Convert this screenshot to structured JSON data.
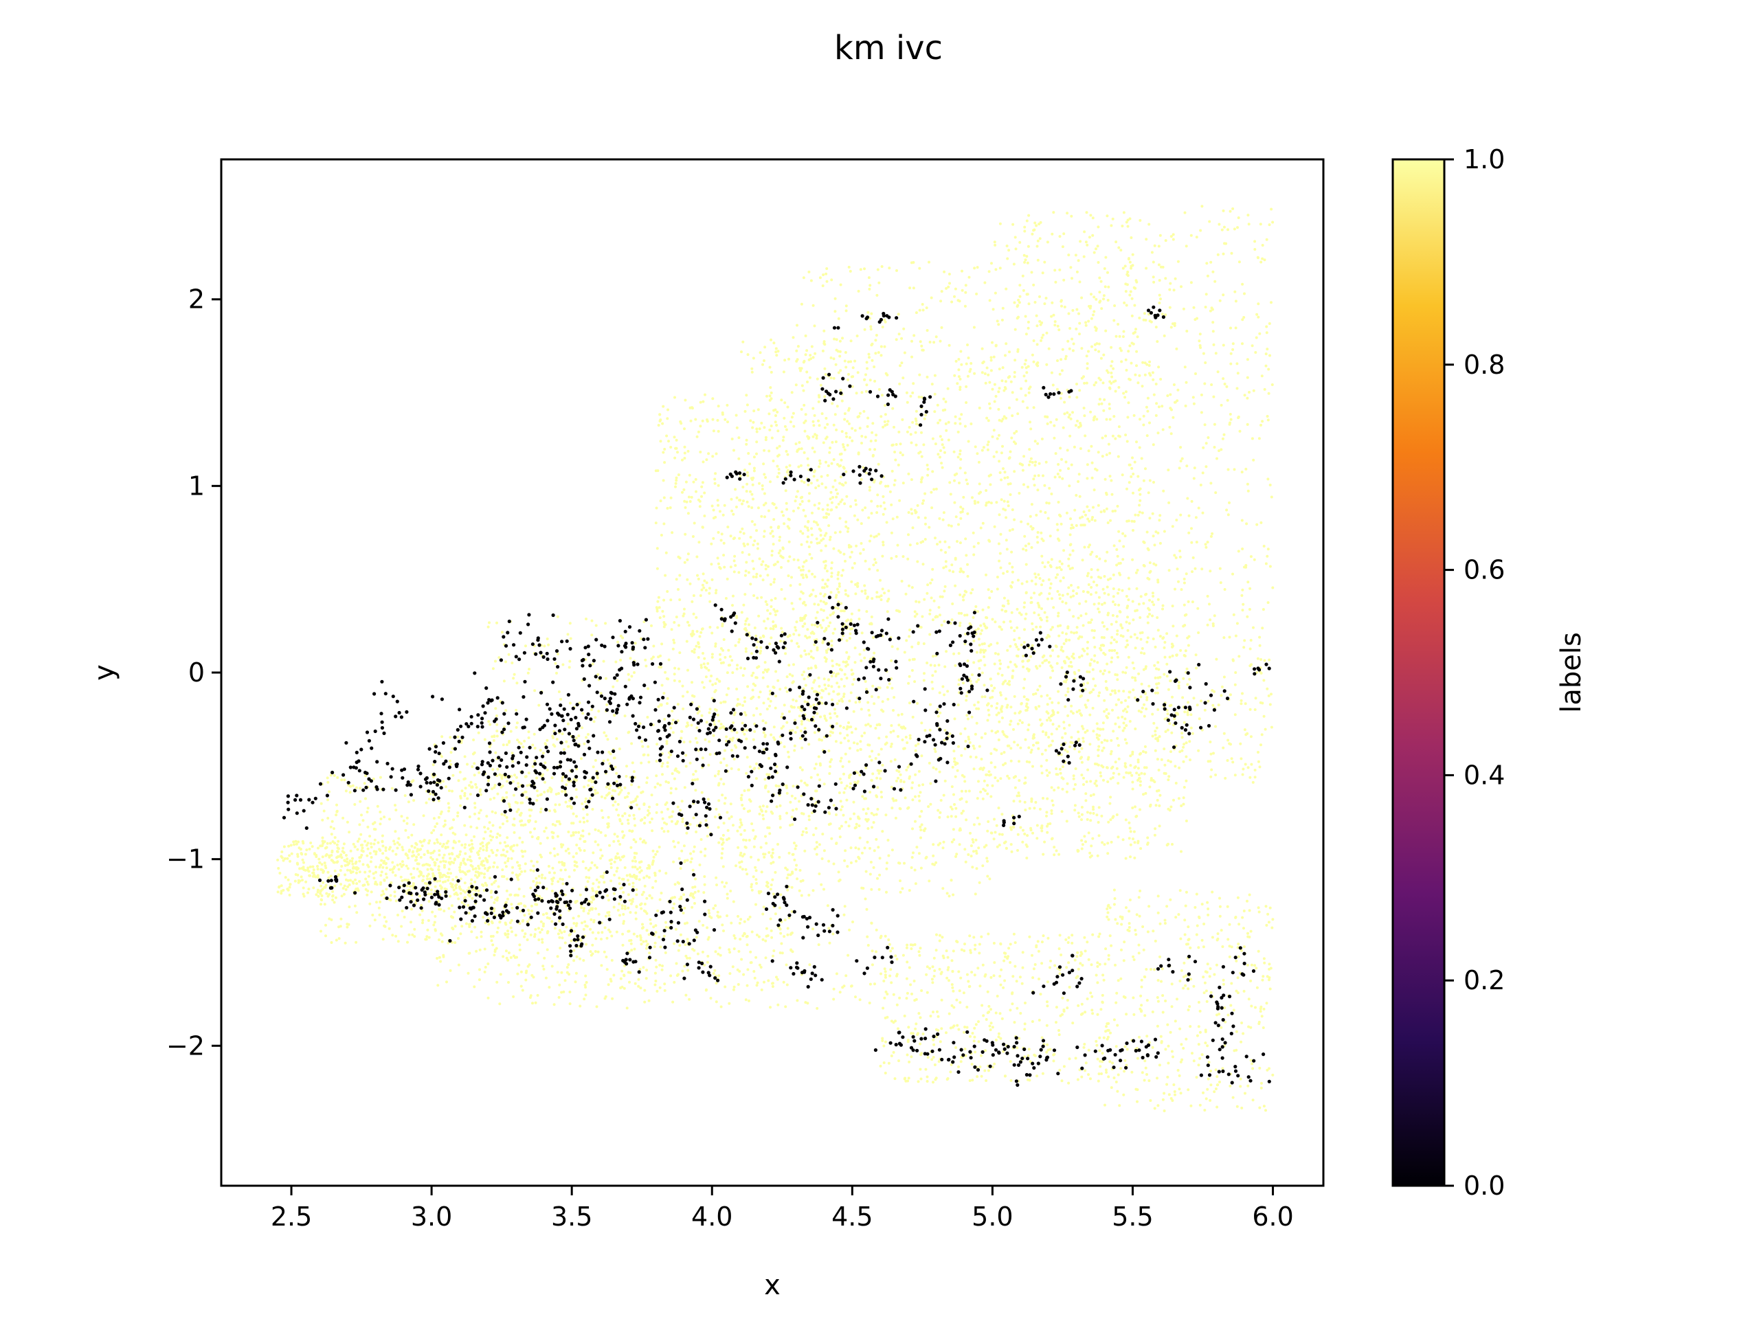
{
  "chart_data": {
    "type": "scatter",
    "title": "km ivc",
    "xlabel": "x",
    "ylabel": "y",
    "xlim": [
      2.25,
      6.18
    ],
    "ylim": [
      -2.75,
      2.75
    ],
    "xticks": [
      2.5,
      3.0,
      3.5,
      4.0,
      4.5,
      5.0,
      5.5,
      6.0
    ],
    "xtick_labels": [
      "2.5",
      "3.0",
      "3.5",
      "4.0",
      "4.5",
      "5.0",
      "5.5",
      "6.0"
    ],
    "yticks": [
      -2,
      -1,
      0,
      1,
      2
    ],
    "ytick_labels": [
      "−2",
      "−1",
      "0",
      "1",
      "2"
    ],
    "grid": false,
    "colorbar": {
      "label": "labels",
      "colormap": "inferno",
      "range": [
        0.0,
        1.0
      ],
      "ticks": [
        0.0,
        0.2,
        0.4,
        0.6,
        0.8,
        1.0
      ],
      "tick_labels": [
        "0.0",
        "0.2",
        "0.4",
        "0.6",
        "0.8",
        "1.0"
      ],
      "stops": [
        "#000004",
        "#280b54",
        "#65156e",
        "#9f2a63",
        "#d44842",
        "#f57d15",
        "#fac228",
        "#fcffa4"
      ]
    },
    "series": [
      {
        "label_value": 1,
        "color": "#fcffa4",
        "regions": [
          {
            "x": [
              2.45,
              3.2
            ],
            "y": [
              -1.2,
              -0.9
            ],
            "n": 500
          },
          {
            "x": [
              2.6,
              3.8
            ],
            "y": [
              -1.45,
              -0.55
            ],
            "n": 700
          },
          {
            "x": [
              3.0,
              4.3
            ],
            "y": [
              -1.7,
              -0.3
            ],
            "n": 900
          },
          {
            "x": [
              3.2,
              4.6
            ],
            "y": [
              -1.8,
              0.3
            ],
            "n": 800
          },
          {
            "x": [
              3.8,
              4.5
            ],
            "y": [
              -0.3,
              1.5
            ],
            "n": 700
          },
          {
            "x": [
              4.1,
              5.0
            ],
            "y": [
              -1.2,
              1.8
            ],
            "n": 900
          },
          {
            "x": [
              4.3,
              5.6
            ],
            "y": [
              -1.0,
              2.2
            ],
            "n": 1300
          },
          {
            "x": [
              5.0,
              6.0
            ],
            "y": [
              -0.6,
              2.5
            ],
            "n": 1200
          },
          {
            "x": [
              4.9,
              5.7
            ],
            "y": [
              -1.0,
              0.4
            ],
            "n": 500
          },
          {
            "x": [
              4.6,
              5.4
            ],
            "y": [
              -2.2,
              -1.4
            ],
            "n": 450
          },
          {
            "x": [
              5.4,
              6.0
            ],
            "y": [
              -2.35,
              -1.15
            ],
            "n": 400
          }
        ]
      },
      {
        "label_value": 0,
        "color": "#000004",
        "clusters": [
          {
            "cx": 2.55,
            "cy": -0.68,
            "sx": 0.05,
            "sy": 0.05,
            "n": 15
          },
          {
            "cx": 2.78,
            "cy": -0.52,
            "sx": 0.07,
            "sy": 0.08,
            "n": 30
          },
          {
            "cx": 2.85,
            "cy": -0.2,
            "sx": 0.05,
            "sy": 0.07,
            "n": 15
          },
          {
            "cx": 2.98,
            "cy": -0.6,
            "sx": 0.06,
            "sy": 0.06,
            "n": 25
          },
          {
            "cx": 3.08,
            "cy": -0.42,
            "sx": 0.06,
            "sy": 0.1,
            "n": 25
          },
          {
            "cx": 3.18,
            "cy": -0.2,
            "sx": 0.06,
            "sy": 0.08,
            "n": 30
          },
          {
            "cx": 3.28,
            "cy": -0.55,
            "sx": 0.08,
            "sy": 0.1,
            "n": 50
          },
          {
            "cx": 3.38,
            "cy": 0.15,
            "sx": 0.07,
            "sy": 0.09,
            "n": 30
          },
          {
            "cx": 3.45,
            "cy": -0.3,
            "sx": 0.08,
            "sy": 0.12,
            "n": 45
          },
          {
            "cx": 3.55,
            "cy": -0.6,
            "sx": 0.07,
            "sy": 0.09,
            "n": 45
          },
          {
            "cx": 3.62,
            "cy": -0.15,
            "sx": 0.08,
            "sy": 0.1,
            "n": 50
          },
          {
            "cx": 3.7,
            "cy": 0.12,
            "sx": 0.08,
            "sy": 0.06,
            "n": 30
          },
          {
            "cx": 3.85,
            "cy": -0.35,
            "sx": 0.08,
            "sy": 0.12,
            "n": 45
          },
          {
            "cx": 3.95,
            "cy": -0.75,
            "sx": 0.05,
            "sy": 0.06,
            "n": 20
          },
          {
            "cx": 4.05,
            "cy": 0.28,
            "sx": 0.03,
            "sy": 0.04,
            "n": 10
          },
          {
            "cx": 4.05,
            "cy": -0.35,
            "sx": 0.06,
            "sy": 0.12,
            "n": 35
          },
          {
            "cx": 4.2,
            "cy": 0.15,
            "sx": 0.05,
            "sy": 0.05,
            "n": 20
          },
          {
            "cx": 4.2,
            "cy": -0.5,
            "sx": 0.06,
            "sy": 0.09,
            "n": 30
          },
          {
            "cx": 4.35,
            "cy": -0.15,
            "sx": 0.07,
            "sy": 0.12,
            "n": 35
          },
          {
            "cx": 4.45,
            "cy": 0.25,
            "sx": 0.06,
            "sy": 0.06,
            "n": 25
          },
          {
            "cx": 4.6,
            "cy": 0.05,
            "sx": 0.05,
            "sy": 0.08,
            "n": 25
          },
          {
            "cx": 4.55,
            "cy": -0.6,
            "sx": 0.06,
            "sy": 0.05,
            "n": 15
          },
          {
            "cx": 4.4,
            "cy": -0.7,
            "sx": 0.05,
            "sy": 0.05,
            "n": 12
          },
          {
            "cx": 4.8,
            "cy": -0.35,
            "sx": 0.05,
            "sy": 0.1,
            "n": 30
          },
          {
            "cx": 4.88,
            "cy": 0.2,
            "sx": 0.06,
            "sy": 0.07,
            "n": 20
          },
          {
            "cx": 4.9,
            "cy": -0.05,
            "sx": 0.03,
            "sy": 0.06,
            "n": 15
          },
          {
            "cx": 5.15,
            "cy": 0.15,
            "sx": 0.04,
            "sy": 0.04,
            "n": 10
          },
          {
            "cx": 5.28,
            "cy": -0.05,
            "sx": 0.04,
            "sy": 0.04,
            "n": 10
          },
          {
            "cx": 5.28,
            "cy": -0.45,
            "sx": 0.04,
            "sy": 0.05,
            "n": 10
          },
          {
            "cx": 5.06,
            "cy": -0.8,
            "sx": 0.02,
            "sy": 0.02,
            "n": 6
          },
          {
            "cx": 5.68,
            "cy": -0.2,
            "sx": 0.07,
            "sy": 0.12,
            "n": 35
          },
          {
            "cx": 5.95,
            "cy": 0.03,
            "sx": 0.03,
            "sy": 0.02,
            "n": 6
          },
          {
            "cx": 2.65,
            "cy": -1.12,
            "sx": 0.03,
            "sy": 0.02,
            "n": 10
          },
          {
            "cx": 2.95,
            "cy": -1.2,
            "sx": 0.06,
            "sy": 0.04,
            "n": 35
          },
          {
            "cx": 3.2,
            "cy": -1.25,
            "sx": 0.06,
            "sy": 0.07,
            "n": 40
          },
          {
            "cx": 3.42,
            "cy": -1.22,
            "sx": 0.06,
            "sy": 0.07,
            "n": 40
          },
          {
            "cx": 3.5,
            "cy": -1.45,
            "sx": 0.03,
            "sy": 0.05,
            "n": 12
          },
          {
            "cx": 3.62,
            "cy": -1.2,
            "sx": 0.05,
            "sy": 0.05,
            "n": 20
          },
          {
            "cx": 3.7,
            "cy": -1.55,
            "sx": 0.04,
            "sy": 0.03,
            "n": 10
          },
          {
            "cx": 3.88,
            "cy": -1.35,
            "sx": 0.05,
            "sy": 0.12,
            "n": 30
          },
          {
            "cx": 3.98,
            "cy": -1.6,
            "sx": 0.03,
            "sy": 0.03,
            "n": 10
          },
          {
            "cx": 4.25,
            "cy": -1.25,
            "sx": 0.04,
            "sy": 0.08,
            "n": 15
          },
          {
            "cx": 4.3,
            "cy": -1.6,
            "sx": 0.04,
            "sy": 0.04,
            "n": 15
          },
          {
            "cx": 4.38,
            "cy": -1.38,
            "sx": 0.04,
            "sy": 0.06,
            "n": 15
          },
          {
            "cx": 4.55,
            "cy": -1.55,
            "sx": 0.05,
            "sy": 0.04,
            "n": 8
          },
          {
            "cx": 4.72,
            "cy": -1.97,
            "sx": 0.07,
            "sy": 0.03,
            "n": 20
          },
          {
            "cx": 4.95,
            "cy": -2.05,
            "sx": 0.08,
            "sy": 0.05,
            "n": 30
          },
          {
            "cx": 5.15,
            "cy": -2.08,
            "sx": 0.07,
            "sy": 0.06,
            "n": 30
          },
          {
            "cx": 5.25,
            "cy": -1.65,
            "sx": 0.05,
            "sy": 0.06,
            "n": 15
          },
          {
            "cx": 5.45,
            "cy": -2.05,
            "sx": 0.05,
            "sy": 0.03,
            "n": 15
          },
          {
            "cx": 5.55,
            "cy": -2.0,
            "sx": 0.03,
            "sy": 0.03,
            "n": 10
          },
          {
            "cx": 5.65,
            "cy": -1.6,
            "sx": 0.05,
            "sy": 0.04,
            "n": 10
          },
          {
            "cx": 5.82,
            "cy": -1.75,
            "sx": 0.04,
            "sy": 0.08,
            "n": 15
          },
          {
            "cx": 5.85,
            "cy": -2.05,
            "sx": 0.06,
            "sy": 0.1,
            "n": 25
          },
          {
            "cx": 5.9,
            "cy": -1.55,
            "sx": 0.03,
            "sy": 0.04,
            "n": 8
          },
          {
            "cx": 4.6,
            "cy": 1.9,
            "sx": 0.04,
            "sy": 0.02,
            "n": 10
          },
          {
            "cx": 4.45,
            "cy": 1.85,
            "sx": 0.01,
            "sy": 0.01,
            "n": 2
          },
          {
            "cx": 4.42,
            "cy": 1.52,
            "sx": 0.03,
            "sy": 0.04,
            "n": 12
          },
          {
            "cx": 4.63,
            "cy": 1.48,
            "sx": 0.03,
            "sy": 0.02,
            "n": 8
          },
          {
            "cx": 4.77,
            "cy": 1.42,
            "sx": 0.02,
            "sy": 0.04,
            "n": 8
          },
          {
            "cx": 5.23,
            "cy": 1.5,
            "sx": 0.03,
            "sy": 0.02,
            "n": 8
          },
          {
            "cx": 5.58,
            "cy": 1.93,
            "sx": 0.02,
            "sy": 0.02,
            "n": 8
          },
          {
            "cx": 4.08,
            "cy": 1.06,
            "sx": 0.03,
            "sy": 0.01,
            "n": 8
          },
          {
            "cx": 4.3,
            "cy": 1.05,
            "sx": 0.03,
            "sy": 0.02,
            "n": 8
          },
          {
            "cx": 4.56,
            "cy": 1.07,
            "sx": 0.05,
            "sy": 0.02,
            "n": 12
          }
        ]
      }
    ]
  }
}
